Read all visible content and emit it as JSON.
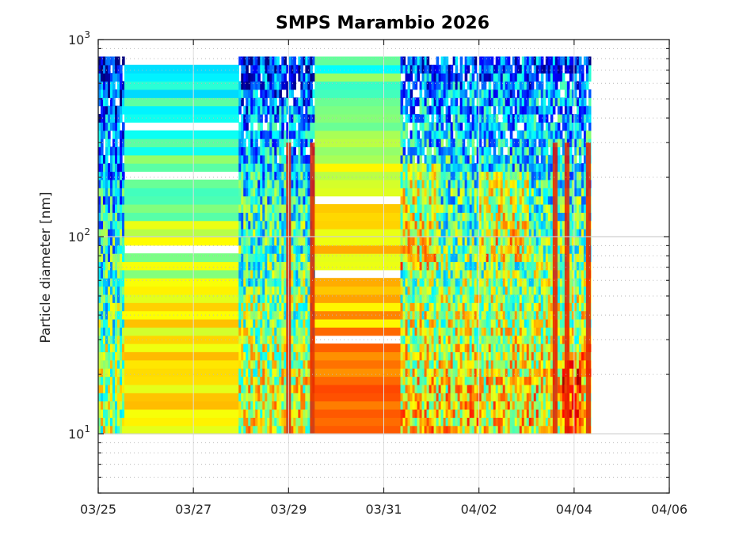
{
  "chart_data": {
    "type": "heatmap",
    "title": "SMPS Marambio 2026",
    "xlabel": "",
    "ylabel": "Particle diameter [nm]",
    "x_ticks": [
      "03/25",
      "03/27",
      "03/29",
      "03/31",
      "04/02",
      "04/04",
      "04/06"
    ],
    "x_range_days": [
      0,
      12
    ],
    "y_scale": "log",
    "y_range_nm": [
      5,
      1000
    ],
    "y_major_ticks": [
      {
        "base": "10",
        "exp": "1",
        "value": 10
      },
      {
        "base": "10",
        "exp": "2",
        "value": 100
      },
      {
        "base": "10",
        "exp": "3",
        "value": 1000
      }
    ],
    "grid": true,
    "colormap": "jet",
    "diameter_range_nm": [
      10,
      820
    ],
    "segments": [
      {
        "name": "segment-1",
        "start_day": -0.05,
        "end_day": 0.55,
        "pattern": "noisy",
        "bias": 0.55
      },
      {
        "name": "segment-2",
        "start_day": 0.55,
        "end_day": 2.95,
        "pattern": "banded",
        "bias": 0.66,
        "top_nm": 700
      },
      {
        "name": "segment-3",
        "start_day": 2.95,
        "end_day": 4.55,
        "pattern": "noisy",
        "bias": 0.6
      },
      {
        "name": "segment-4",
        "start_day": 4.55,
        "end_day": 6.35,
        "pattern": "banded",
        "bias": 0.74
      },
      {
        "name": "segment-5",
        "start_day": 6.35,
        "end_day": 10.35,
        "pattern": "noisy",
        "bias": 0.64
      }
    ],
    "event_lines_day": [
      4.0,
      4.5,
      9.6,
      9.85,
      10.3
    ],
    "high_concentration_patches": [
      {
        "start_day": 9.75,
        "end_day": 10.15,
        "dmin_nm": 10,
        "dmax_nm": 22
      },
      {
        "start_day": 6.3,
        "end_day": 7.1,
        "dmin_nm": 65,
        "dmax_nm": 200
      },
      {
        "start_day": 8.0,
        "end_day": 9.0,
        "dmin_nm": 70,
        "dmax_nm": 190
      }
    ]
  }
}
